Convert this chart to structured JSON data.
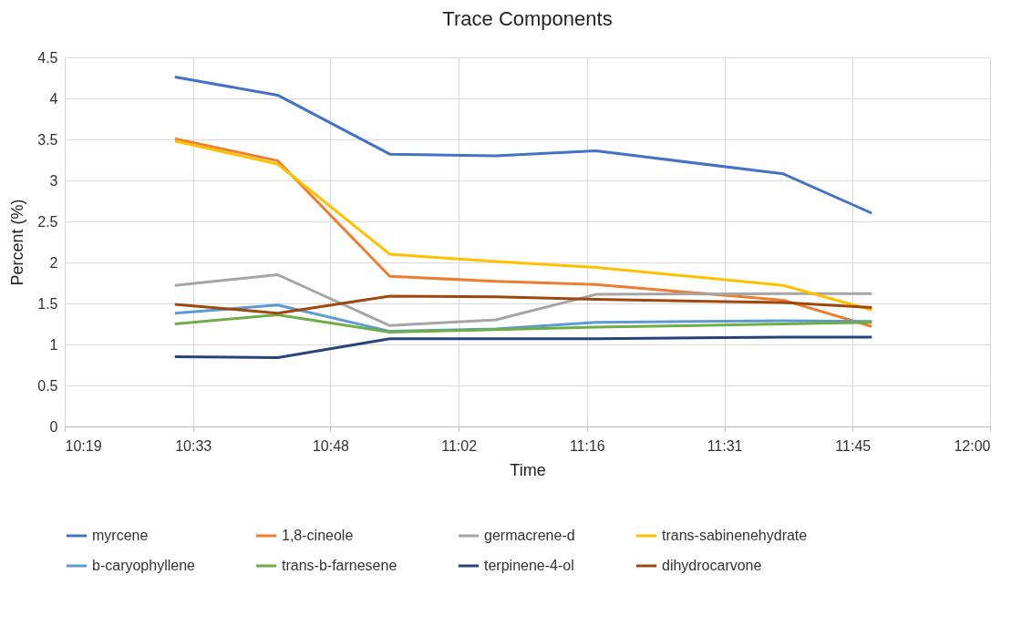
{
  "chart_data": {
    "type": "line",
    "title": "Trace Components",
    "xlabel": "Time",
    "ylabel": "Percent (%)",
    "x": [
      10.517,
      10.704,
      10.908,
      11.101,
      11.283,
      11.624,
      11.785
    ],
    "xlim": [
      10.3167,
      12.0
    ],
    "xticks": [
      {
        "value": 10.3167,
        "label": "10:19"
      },
      {
        "value": 10.55,
        "label": "10:33"
      },
      {
        "value": 10.8,
        "label": "10:48"
      },
      {
        "value": 11.0333,
        "label": "11:02"
      },
      {
        "value": 11.2667,
        "label": "11:16"
      },
      {
        "value": 11.5167,
        "label": "11:31"
      },
      {
        "value": 11.75,
        "label": "11:45"
      },
      {
        "value": 12.0,
        "label": "12:00"
      }
    ],
    "ylim": [
      0,
      4.5
    ],
    "yticks": [
      0,
      0.5,
      1,
      1.5,
      2,
      2.5,
      3,
      3.5,
      4,
      4.5
    ],
    "grid": true,
    "legend": "bottom",
    "series": [
      {
        "name": "myrcene",
        "color": "#4472c4",
        "values": [
          4.26,
          4.04,
          3.32,
          3.3,
          3.36,
          3.08,
          2.6
        ]
      },
      {
        "name": "1,8-cineole",
        "color": "#ed7d31",
        "values": [
          3.51,
          3.24,
          1.83,
          1.77,
          1.73,
          1.54,
          1.22
        ]
      },
      {
        "name": "germacrene-d",
        "color": "#a5a5a5",
        "values": [
          1.72,
          1.85,
          1.23,
          1.3,
          1.61,
          1.62,
          1.62
        ]
      },
      {
        "name": "trans-sabinenehydrate",
        "color": "#ffc000",
        "values": [
          3.48,
          3.2,
          2.1,
          2.01,
          1.94,
          1.72,
          1.42
        ]
      },
      {
        "name": "b-caryophyllene",
        "color": "#5b9bd5",
        "values": [
          1.38,
          1.48,
          1.16,
          1.19,
          1.27,
          1.29,
          1.28
        ]
      },
      {
        "name": "trans-b-farnesene",
        "color": "#70ad47",
        "values": [
          1.25,
          1.36,
          1.15,
          1.18,
          1.21,
          1.25,
          1.27
        ]
      },
      {
        "name": "terpinene-4-ol",
        "color": "#264478",
        "values": [
          0.85,
          0.84,
          1.07,
          1.07,
          1.07,
          1.09,
          1.09
        ]
      },
      {
        "name": "dihydrocarvone",
        "color": "#9e480e",
        "values": [
          1.49,
          1.38,
          1.59,
          1.58,
          1.55,
          1.51,
          1.45
        ]
      }
    ]
  }
}
